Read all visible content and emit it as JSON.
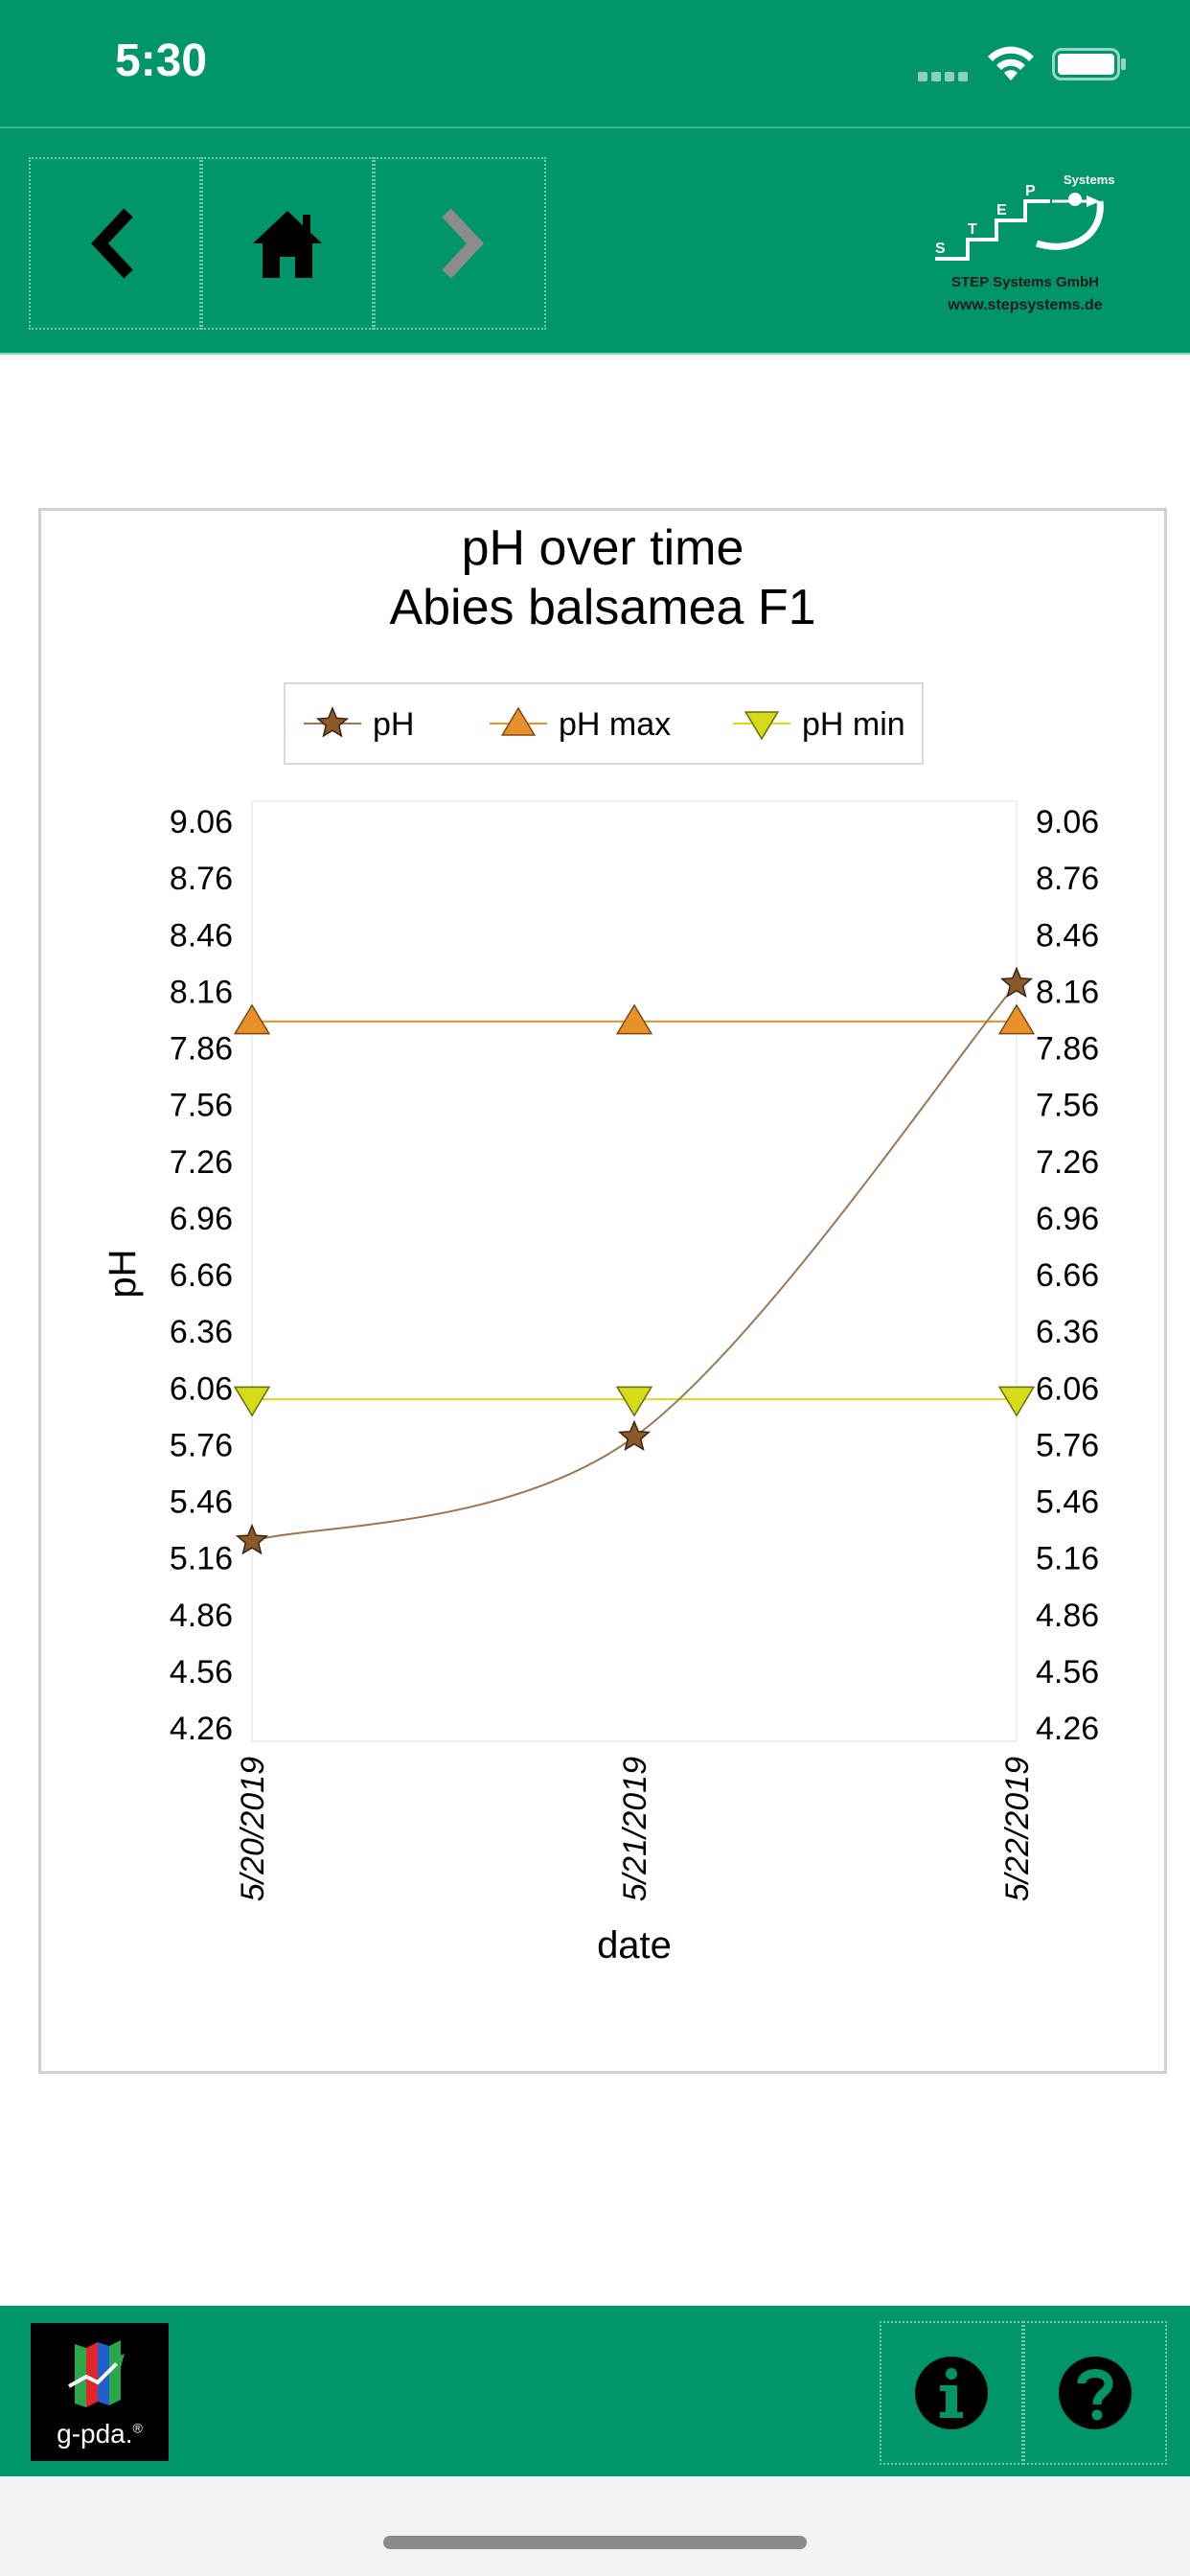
{
  "status_bar": {
    "time": "5:30"
  },
  "nav": {
    "back_icon": "chevron-left-icon",
    "home_icon": "home-icon",
    "forward_icon": "chevron-right-icon"
  },
  "logo": {
    "letters": [
      "S",
      "T",
      "E",
      "P"
    ],
    "brand_word": "Systems",
    "company": "STEP Systems GmbH",
    "url": "www.stepsystems.de"
  },
  "chart_data": {
    "type": "line",
    "title": "pH over time",
    "subtitle": "Abies balsamea F1",
    "xlabel": "date",
    "ylabel": "pH",
    "categories": [
      "5/20/2019",
      "5/21/2019",
      "5/22/2019"
    ],
    "yticks": [
      "9.06",
      "8.76",
      "8.46",
      "8.16",
      "7.86",
      "7.56",
      "7.26",
      "6.96",
      "6.66",
      "6.36",
      "6.06",
      "5.76",
      "5.46",
      "5.16",
      "4.86",
      "4.56",
      "4.26"
    ],
    "ylim": [
      4.26,
      9.06
    ],
    "grid": false,
    "legend_position": "top",
    "series": [
      {
        "name": "pH",
        "values": [
          5.25,
          5.8,
          8.2
        ],
        "color": "#8b5a2b",
        "marker": "star",
        "smooth": true
      },
      {
        "name": "pH max",
        "values": [
          8.0,
          8.0,
          8.0
        ],
        "color": "#e8902a",
        "marker": "triangle-up",
        "smooth": false
      },
      {
        "name": "pH min",
        "values": [
          6.0,
          6.0,
          6.0
        ],
        "color": "#d4dc1a",
        "marker": "triangle-down",
        "smooth": false
      }
    ]
  },
  "footer": {
    "app_logo_text": "g-pda.",
    "registered_mark": "®",
    "info_icon": "info-icon",
    "help_icon": "help-icon"
  },
  "colors": {
    "brand_green": "#009669"
  }
}
